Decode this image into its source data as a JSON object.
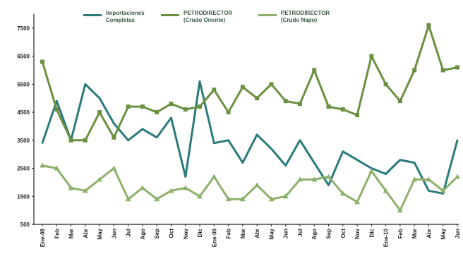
{
  "chart_data": {
    "type": "line",
    "title": "",
    "xlabel": "",
    "ylabel": "",
    "ylim": [
      500,
      8000
    ],
    "yticks": [
      500,
      1500,
      2500,
      3500,
      4500,
      5500,
      6500,
      7500
    ],
    "ytick_labels": [
      "500",
      "1500",
      "2500",
      "3500",
      "4500",
      "5500",
      "6500",
      "7500"
    ],
    "grid": false,
    "legend_position": "top",
    "categories": [
      "Ene-08",
      "Feb",
      "Mar",
      "Abr",
      "May",
      "Jun",
      "Jul",
      "Ago",
      "Sep",
      "Oct",
      "Nov",
      "Dic",
      "Ene-09",
      "Feb",
      "Mar",
      "Abr",
      "May",
      "Jun",
      "Jul",
      "Ago",
      "Sep",
      "Oct",
      "Nov",
      "Dic",
      "Ene-10",
      "Feb",
      "Mar",
      "Abr",
      "May",
      "Jun"
    ],
    "series": [
      {
        "name": "Importaciones\nCompletas",
        "color": "#2a7a7c",
        "marker": "none",
        "values": [
          3400,
          4900,
          3500,
          5500,
          5000,
          4100,
          3500,
          3900,
          3600,
          4300,
          2200,
          5600,
          3400,
          3500,
          2700,
          3700,
          3200,
          2600,
          3500,
          2700,
          1900,
          3100,
          2800,
          2500,
          2300,
          2800,
          2700,
          1700,
          1600,
          3500
        ]
      },
      {
        "name": "PETRODIRECTOR\n(Crudo Oriente)",
        "color": "#6b9040",
        "marker": "square",
        "values": [
          6300,
          4600,
          3500,
          3500,
          4500,
          3600,
          4700,
          4700,
          4500,
          4800,
          4600,
          4700,
          5300,
          4500,
          5400,
          5000,
          5500,
          4900,
          4800,
          6000,
          4700,
          4600,
          4400,
          6500,
          5500,
          4900,
          6000,
          7600,
          6000,
          6100
        ]
      },
      {
        "name": "PETRODIRECTOR\n(Crudo Napo)",
        "color": "#8db06a",
        "marker": "triangle",
        "values": [
          2600,
          2500,
          1800,
          1700,
          2100,
          2500,
          1400,
          1800,
          1400,
          1700,
          1800,
          1500,
          2200,
          1400,
          1400,
          1900,
          1400,
          1500,
          2100,
          2100,
          2200,
          1600,
          1300,
          2400,
          1700,
          1000,
          2100,
          2100,
          1700,
          2200
        ]
      }
    ]
  }
}
